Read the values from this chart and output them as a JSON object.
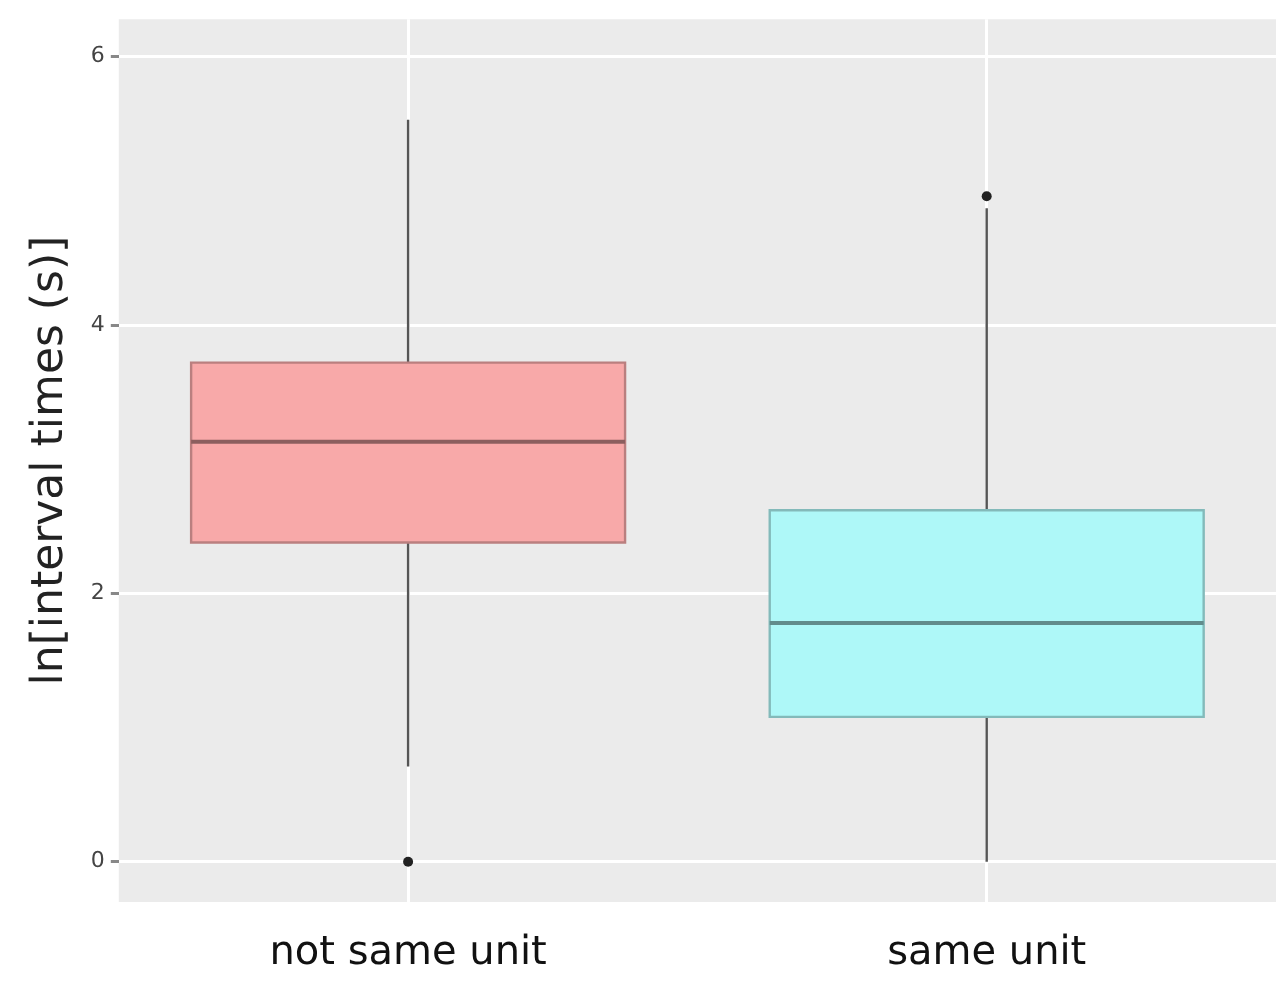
{
  "chart_data": {
    "type": "box",
    "ylabel": "ln[interval times (s)]",
    "categories": [
      "not same unit",
      "same unit"
    ],
    "colors": [
      "#f8a9a9",
      "#aef8f8"
    ],
    "boxes": [
      {
        "low": 0.71,
        "q1": 2.38,
        "median": 3.13,
        "q3": 3.72,
        "high": 5.53,
        "outliers": [
          0
        ]
      },
      {
        "low": 0,
        "q1": 1.08,
        "median": 1.78,
        "q3": 2.62,
        "high": 4.87,
        "outliers": [
          4.96
        ]
      }
    ],
    "ylim": [
      -0.3,
      6.28
    ],
    "yticks": [
      0,
      2,
      4,
      6
    ],
    "grid": true,
    "legend": false
  }
}
